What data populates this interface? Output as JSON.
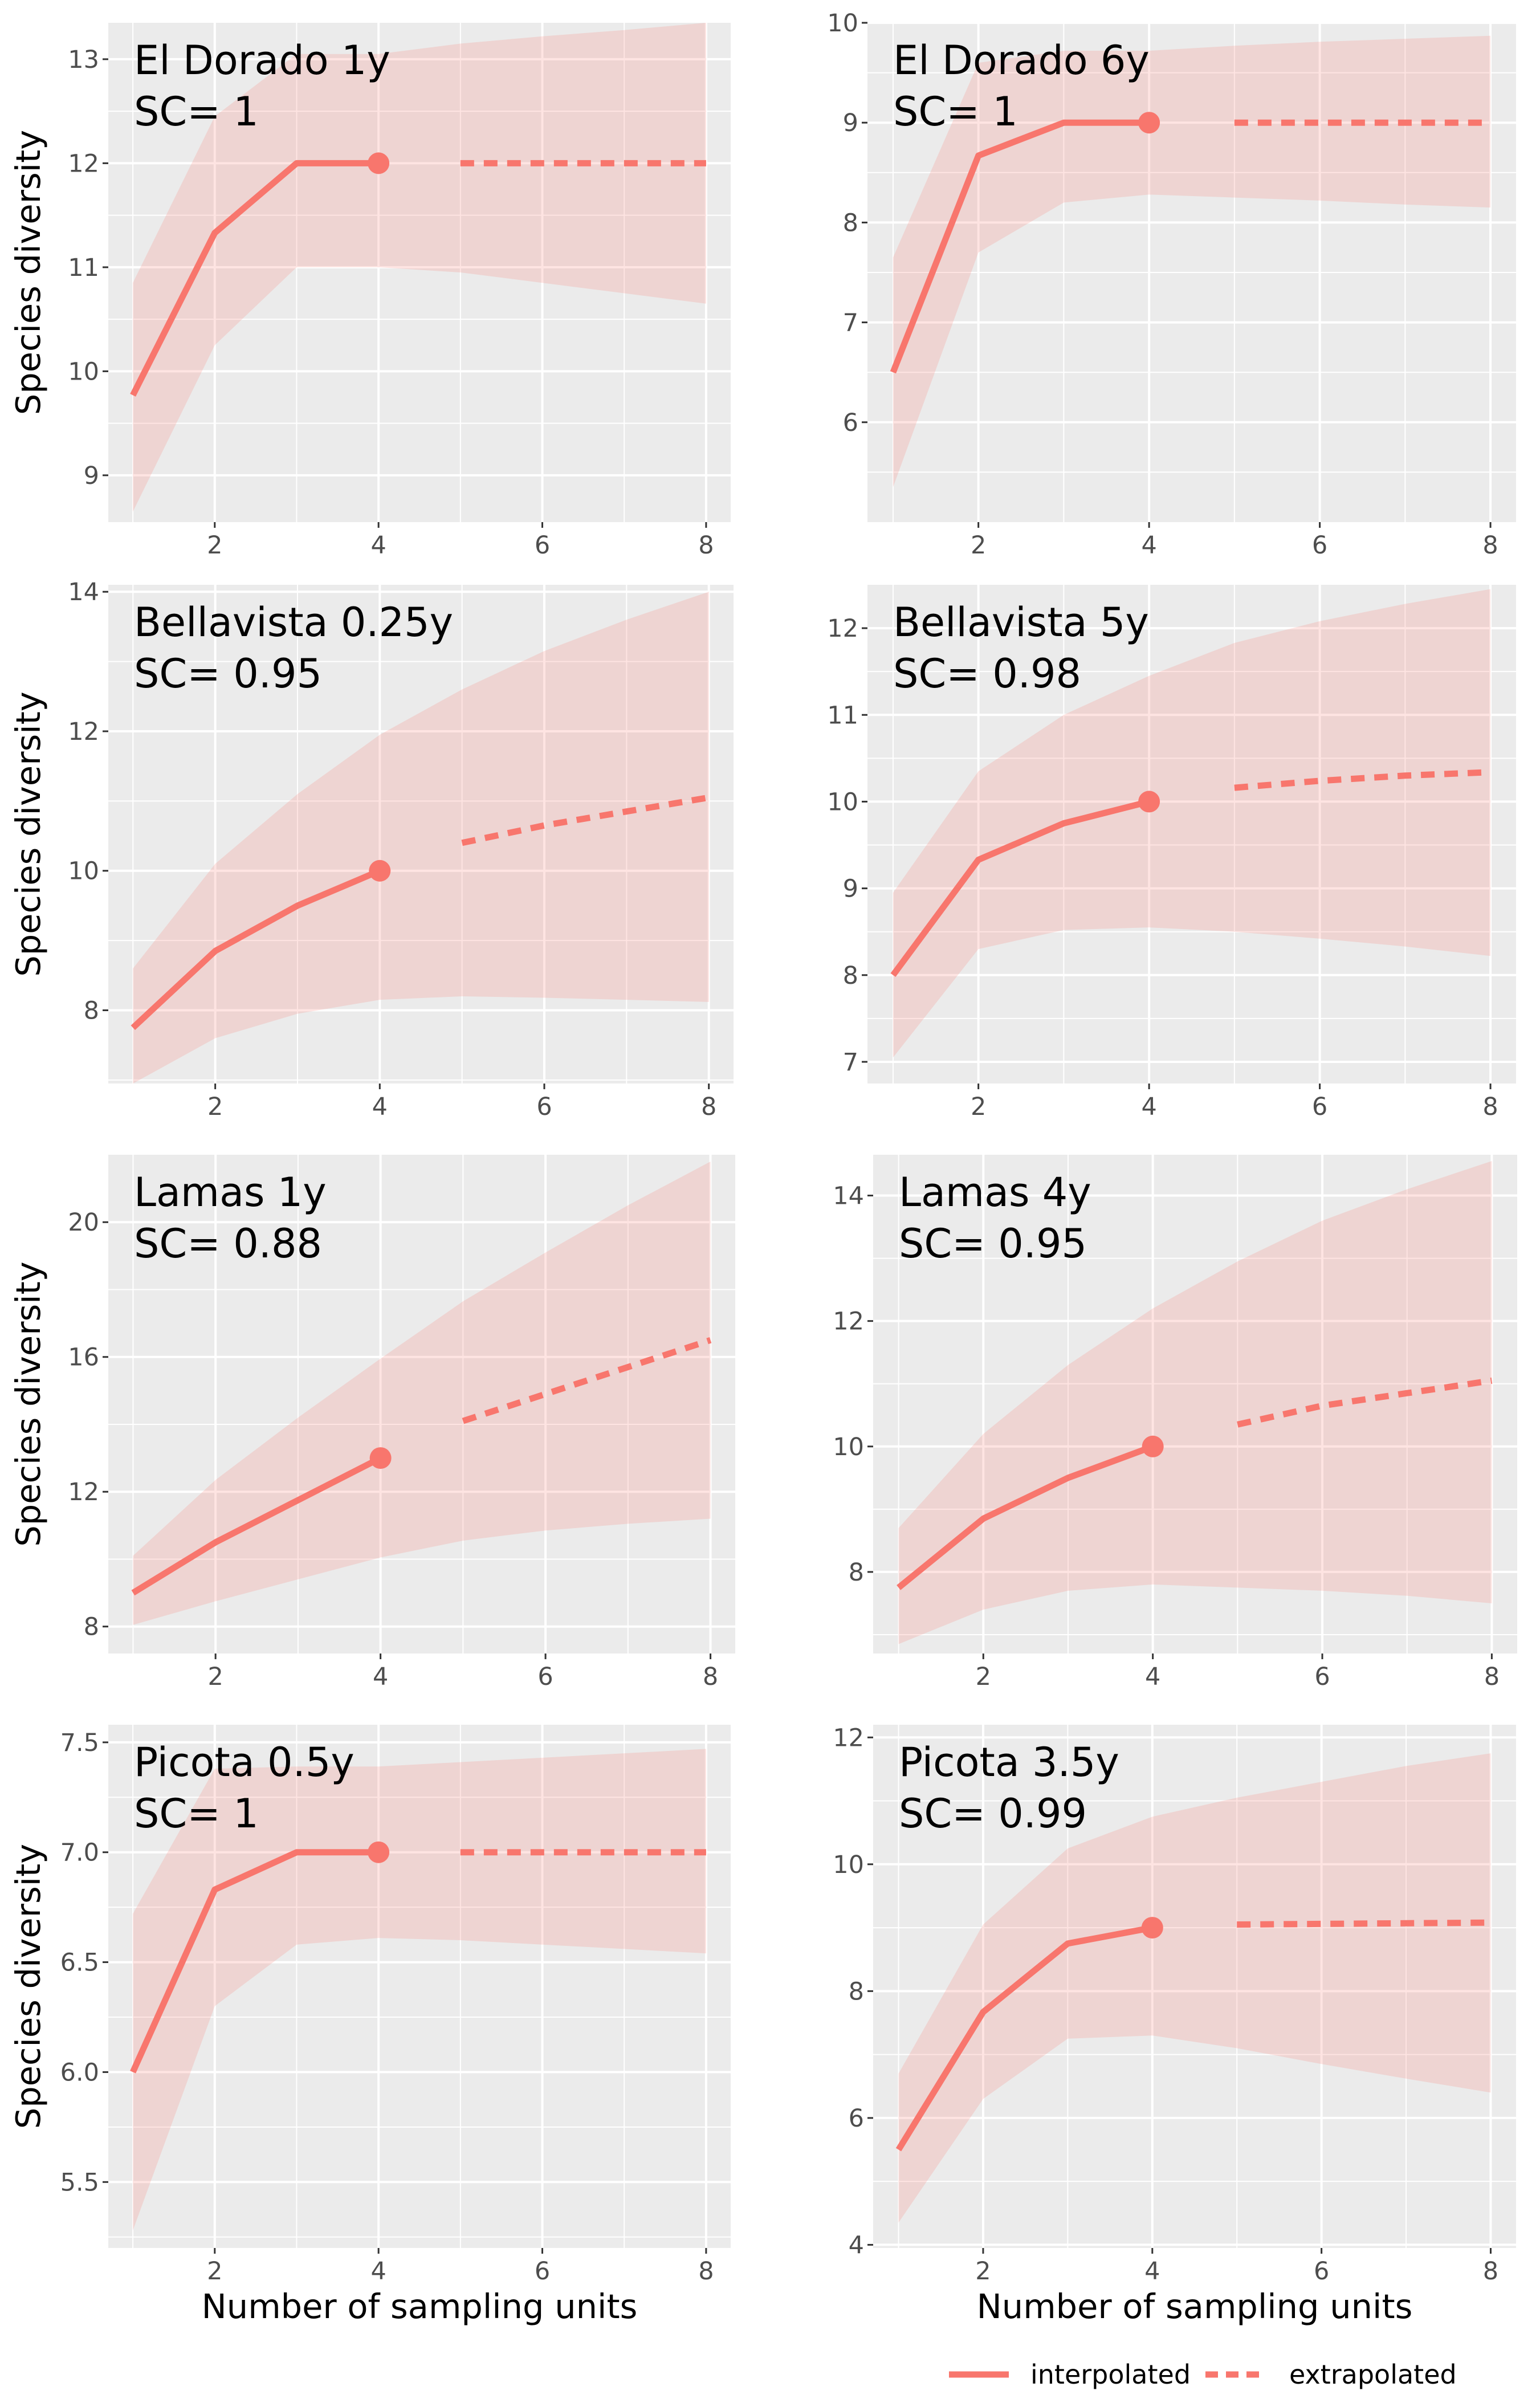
{
  "colors": {
    "panel_bg": "#ebebeb",
    "grid": "#ffffff",
    "line": "#f8766d",
    "ribbon": "#f8766d"
  },
  "chart_data": [
    {
      "type": "line",
      "title": "El Dorado 1y",
      "subtitle": "SC= 1",
      "xlabel": "",
      "ylabel": "Species diversity",
      "xlim": [
        0.7,
        8.3
      ],
      "ylim": [
        8.55,
        13.35
      ],
      "xticks": [
        2,
        4,
        6,
        8
      ],
      "yticks": [
        9,
        10,
        11,
        12,
        13
      ],
      "ribbon_x": [
        1,
        2,
        3,
        4,
        5,
        6,
        7,
        8
      ],
      "ribbon_lower": [
        8.65,
        10.25,
        11.0,
        11.0,
        10.95,
        10.85,
        10.75,
        10.65
      ],
      "ribbon_upper": [
        10.85,
        12.45,
        13.05,
        13.05,
        13.15,
        13.22,
        13.28,
        13.35
      ],
      "interpolated": {
        "x": [
          1,
          2,
          3,
          4
        ],
        "y": [
          9.77,
          11.33,
          12.0,
          12.0
        ]
      },
      "extrapolated": {
        "x": [
          5,
          6,
          7,
          8
        ],
        "y": [
          12.0,
          12.0,
          12.0,
          12.0
        ]
      },
      "observed": {
        "x": 4,
        "y": 12.0
      }
    },
    {
      "type": "line",
      "title": "El Dorado 6y",
      "subtitle": "SC= 1",
      "xlabel": "",
      "ylabel": "",
      "xlim": [
        0.7,
        8.3
      ],
      "ylim": [
        5.0,
        10.0
      ],
      "xticks": [
        2,
        4,
        6,
        8
      ],
      "yticks": [
        6,
        7,
        8,
        9,
        10
      ],
      "ribbon_x": [
        1,
        2,
        3,
        4,
        5,
        6,
        7,
        8
      ],
      "ribbon_lower": [
        5.35,
        7.7,
        8.2,
        8.28,
        8.25,
        8.22,
        8.18,
        8.15
      ],
      "ribbon_upper": [
        7.65,
        9.6,
        9.72,
        9.72,
        9.77,
        9.81,
        9.84,
        9.87
      ],
      "interpolated": {
        "x": [
          1,
          2,
          3,
          4
        ],
        "y": [
          6.5,
          8.67,
          9.0,
          9.0
        ]
      },
      "extrapolated": {
        "x": [
          5,
          6,
          7,
          8
        ],
        "y": [
          9.0,
          9.0,
          9.0,
          9.0
        ]
      },
      "observed": {
        "x": 4,
        "y": 9.0
      }
    },
    {
      "type": "line",
      "title": "Bellavista 0.25y",
      "subtitle": "SC= 0.95",
      "xlabel": "",
      "ylabel": "Species diversity",
      "xlim": [
        0.7,
        8.3
      ],
      "ylim": [
        6.95,
        14.1
      ],
      "xticks": [
        2,
        4,
        6,
        8
      ],
      "yticks": [
        8,
        10,
        12,
        14
      ],
      "ribbon_x": [
        1,
        2,
        3,
        4,
        5,
        6,
        7,
        8
      ],
      "ribbon_lower": [
        6.95,
        7.6,
        7.95,
        8.15,
        8.2,
        8.18,
        8.15,
        8.12
      ],
      "ribbon_upper": [
        8.6,
        10.1,
        11.1,
        11.95,
        12.6,
        13.15,
        13.6,
        14.0
      ],
      "interpolated": {
        "x": [
          1,
          2,
          3,
          4
        ],
        "y": [
          7.75,
          8.85,
          9.5,
          10.0
        ]
      },
      "extrapolated": {
        "x": [
          5,
          6,
          7,
          8
        ],
        "y": [
          10.4,
          10.65,
          10.85,
          11.05
        ]
      },
      "observed": {
        "x": 4,
        "y": 10.0
      }
    },
    {
      "type": "line",
      "title": "Bellavista 5y",
      "subtitle": "SC= 0.98",
      "xlabel": "",
      "ylabel": "",
      "xlim": [
        0.7,
        8.3
      ],
      "ylim": [
        6.75,
        12.5
      ],
      "xticks": [
        2,
        4,
        6,
        8
      ],
      "yticks": [
        7,
        8,
        9,
        10,
        11,
        12
      ],
      "ribbon_x": [
        1,
        2,
        3,
        4,
        5,
        6,
        7,
        8
      ],
      "ribbon_lower": [
        7.05,
        8.3,
        8.52,
        8.55,
        8.5,
        8.42,
        8.33,
        8.22
      ],
      "ribbon_upper": [
        8.95,
        10.35,
        11.0,
        11.45,
        11.83,
        12.08,
        12.28,
        12.45
      ],
      "interpolated": {
        "x": [
          1,
          2,
          3,
          4
        ],
        "y": [
          8.0,
          9.33,
          9.75,
          10.0
        ]
      },
      "extrapolated": {
        "x": [
          5,
          6,
          7,
          8
        ],
        "y": [
          10.16,
          10.24,
          10.3,
          10.34
        ]
      },
      "observed": {
        "x": 4,
        "y": 10.0
      }
    },
    {
      "type": "line",
      "title": "Lamas 1y",
      "subtitle": "SC= 0.88",
      "xlabel": "",
      "ylabel": "Species diversity",
      "xlim": [
        0.7,
        8.3
      ],
      "ylim": [
        7.2,
        22.0
      ],
      "xticks": [
        2,
        4,
        6,
        8
      ],
      "yticks": [
        8,
        12,
        16,
        20
      ],
      "ribbon_x": [
        1,
        2,
        3,
        4,
        5,
        6,
        7,
        8
      ],
      "ribbon_lower": [
        8.05,
        8.75,
        9.4,
        10.05,
        10.55,
        10.85,
        11.05,
        11.2
      ],
      "ribbon_upper": [
        10.1,
        12.35,
        14.2,
        15.95,
        17.65,
        19.1,
        20.5,
        21.8
      ],
      "interpolated": {
        "x": [
          1,
          2,
          3,
          4
        ],
        "y": [
          9.0,
          10.5,
          11.75,
          13.0
        ]
      },
      "extrapolated": {
        "x": [
          5,
          6,
          7,
          8
        ],
        "y": [
          14.1,
          14.9,
          15.7,
          16.5
        ]
      },
      "observed": {
        "x": 4,
        "y": 13.0
      }
    },
    {
      "type": "line",
      "title": "Lamas 4y",
      "subtitle": "SC= 0.95",
      "xlabel": "",
      "ylabel": "",
      "xlim": [
        0.7,
        8.3
      ],
      "ylim": [
        6.7,
        14.65
      ],
      "xticks": [
        2,
        4,
        6,
        8
      ],
      "yticks": [
        8,
        10,
        12,
        14
      ],
      "ribbon_x": [
        1,
        2,
        3,
        4,
        5,
        6,
        7,
        8
      ],
      "ribbon_lower": [
        6.85,
        7.4,
        7.7,
        7.8,
        7.75,
        7.7,
        7.62,
        7.5
      ],
      "ribbon_upper": [
        8.7,
        10.2,
        11.3,
        12.2,
        12.95,
        13.6,
        14.1,
        14.55
      ],
      "interpolated": {
        "x": [
          1,
          2,
          3,
          4
        ],
        "y": [
          7.75,
          8.85,
          9.5,
          10.0
        ]
      },
      "extrapolated": {
        "x": [
          5,
          6,
          7,
          8
        ],
        "y": [
          10.35,
          10.65,
          10.85,
          11.05
        ]
      },
      "observed": {
        "x": 4,
        "y": 10.0
      }
    },
    {
      "type": "line",
      "title": "Picota 0.5y",
      "subtitle": "SC= 1",
      "xlabel": "Number of sampling units",
      "ylabel": "Species diversity",
      "xlim": [
        0.7,
        8.3
      ],
      "ylim": [
        5.2,
        7.58
      ],
      "xticks": [
        2,
        4,
        6,
        8
      ],
      "yticks": [
        5.5,
        6.0,
        6.5,
        7.0,
        7.5
      ],
      "ytick_labels": [
        "5.5",
        "6.0",
        "6.5",
        "7.0",
        "7.5"
      ],
      "ribbon_x": [
        1,
        2,
        3,
        4,
        5,
        6,
        7,
        8
      ],
      "ribbon_lower": [
        5.28,
        6.3,
        6.58,
        6.61,
        6.6,
        6.58,
        6.56,
        6.54
      ],
      "ribbon_upper": [
        6.72,
        7.38,
        7.39,
        7.39,
        7.41,
        7.43,
        7.45,
        7.47
      ],
      "interpolated": {
        "x": [
          1,
          2,
          3,
          4
        ],
        "y": [
          6.0,
          6.83,
          7.0,
          7.0
        ]
      },
      "extrapolated": {
        "x": [
          5,
          6,
          7,
          8
        ],
        "y": [
          7.0,
          7.0,
          7.0,
          7.0
        ]
      },
      "observed": {
        "x": 4,
        "y": 7.0
      }
    },
    {
      "type": "line",
      "title": "Picota 3.5y",
      "subtitle": "SC= 0.99",
      "xlabel": "Number of sampling units",
      "ylabel": "",
      "xlim": [
        0.7,
        8.3
      ],
      "ylim": [
        3.95,
        12.2
      ],
      "xticks": [
        2,
        4,
        6,
        8
      ],
      "yticks": [
        4,
        6,
        8,
        10,
        12
      ],
      "ribbon_x": [
        1,
        2,
        3,
        4,
        5,
        6,
        7,
        8
      ],
      "ribbon_lower": [
        4.35,
        6.3,
        7.25,
        7.3,
        7.1,
        6.85,
        6.62,
        6.4
      ],
      "ribbon_upper": [
        6.7,
        9.05,
        10.25,
        10.75,
        11.05,
        11.3,
        11.55,
        11.75
      ],
      "interpolated": {
        "x": [
          1,
          2,
          3,
          4
        ],
        "y": [
          5.5,
          7.67,
          8.75,
          9.0
        ]
      },
      "extrapolated": {
        "x": [
          5,
          6,
          7,
          8
        ],
        "y": [
          9.05,
          9.06,
          9.07,
          9.08
        ]
      },
      "observed": {
        "x": 4,
        "y": 9.0
      }
    }
  ],
  "legend": {
    "position": "bottom-right",
    "items": [
      {
        "label": "interpolated",
        "style": "solid"
      },
      {
        "label": "extrapolated",
        "style": "dashed"
      }
    ]
  }
}
